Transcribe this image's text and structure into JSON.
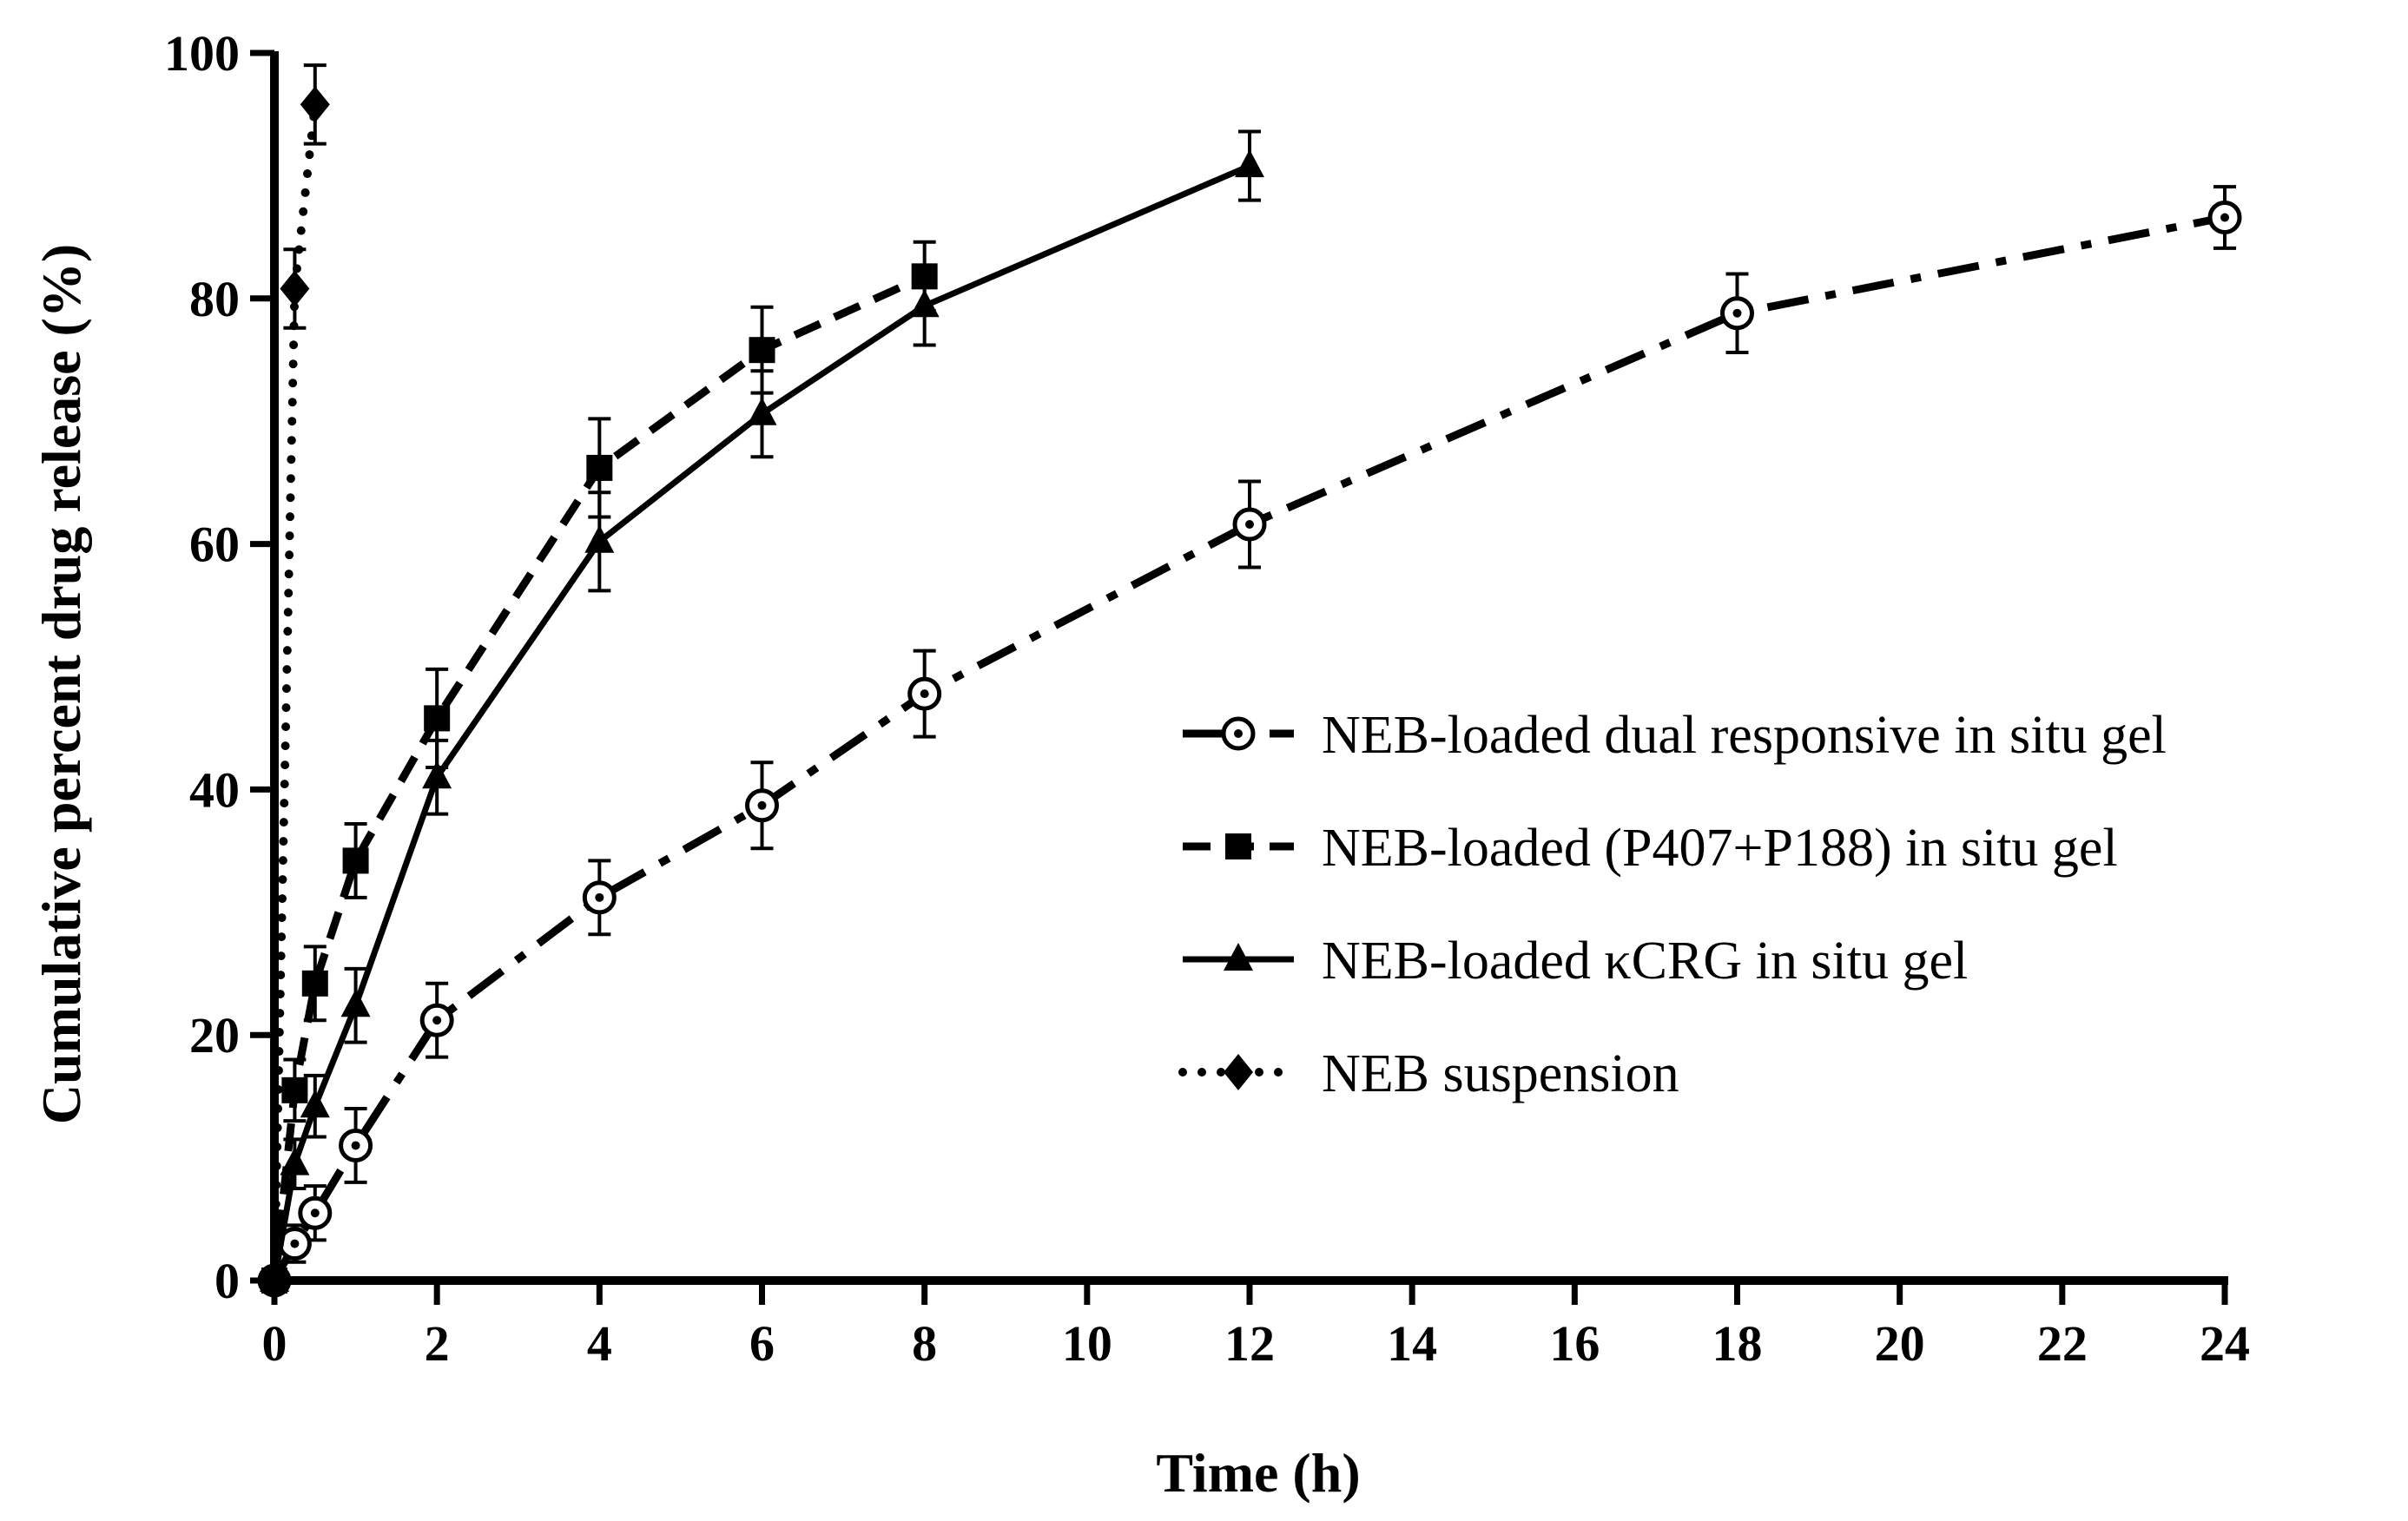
{
  "chart_data": {
    "type": "line",
    "title": "",
    "xlabel": "Time (h)",
    "ylabel": "Cumulative percent drug release (%)",
    "xlim": [
      0,
      24
    ],
    "ylim": [
      0,
      100
    ],
    "xticks": [
      0,
      2,
      4,
      6,
      8,
      10,
      12,
      14,
      16,
      18,
      20,
      22,
      24
    ],
    "yticks": [
      0,
      20,
      40,
      60,
      80,
      100
    ],
    "legend_position": "right-middle",
    "grid": false,
    "series": [
      {
        "name": "NEB-loaded dual responsive in situ gel",
        "marker": "open-circle-dot",
        "line_style": "dash-dot",
        "color": "#000000",
        "x": [
          0,
          0.25,
          0.5,
          1,
          2,
          4,
          6,
          8,
          12,
          18,
          24
        ],
        "values": [
          0,
          3,
          5.5,
          11,
          21.2,
          31.2,
          38.7,
          47.8,
          61.6,
          78.8,
          86.6
        ],
        "errors": [
          0,
          1.5,
          2.2,
          3.0,
          3.0,
          3.0,
          3.5,
          3.5,
          3.5,
          3.2,
          2.5
        ]
      },
      {
        "name": "NEB-loaded (P407+P188) in situ gel",
        "marker": "filled-square",
        "line_style": "dashed",
        "color": "#000000",
        "x": [
          0,
          0.25,
          0.5,
          1,
          2,
          4,
          6,
          8
        ],
        "values": [
          0,
          15.5,
          24.2,
          34.2,
          45.8,
          66.2,
          75.8,
          81.8
        ],
        "errors": [
          0,
          2.5,
          3.0,
          3.0,
          4.0,
          4.0,
          3.5,
          2.8
        ]
      },
      {
        "name": "NEB-loaded κCRG in situ gel",
        "marker": "filled-triangle",
        "line_style": "solid",
        "color": "#000000",
        "x": [
          0,
          0.25,
          0.5,
          1,
          2,
          4,
          6,
          8,
          12
        ],
        "values": [
          0,
          9.5,
          14.2,
          22.4,
          41.0,
          60.2,
          70.6,
          79.4,
          90.8
        ],
        "errors": [
          0,
          2.0,
          2.5,
          3.0,
          3.0,
          4.0,
          3.5,
          3.2,
          2.8
        ]
      },
      {
        "name": "NEB suspension",
        "marker": "filled-diamond",
        "line_style": "dotted",
        "color": "#000000",
        "x": [
          0,
          0.25,
          0.5
        ],
        "values": [
          0,
          80.8,
          95.8
        ],
        "errors": [
          0,
          3.2,
          3.2
        ]
      }
    ]
  }
}
